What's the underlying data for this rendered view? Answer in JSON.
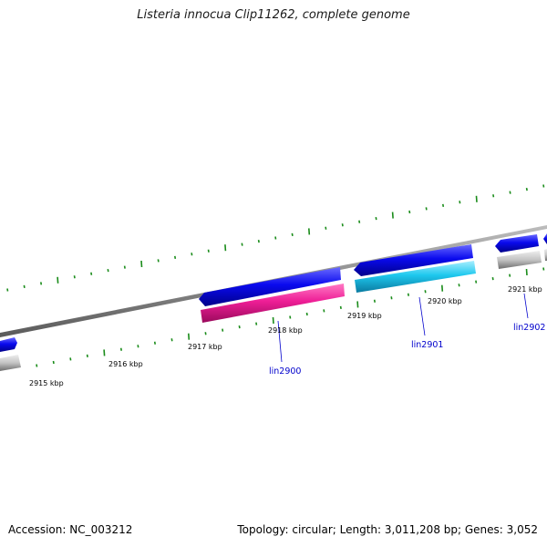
{
  "title": "Listeria innocua Clip11262, complete genome",
  "footer": {
    "accession": "Accession: NC_003212",
    "summary": "Topology: circular; Length: 3,011,208 bp; Genes: 3,052"
  },
  "scale_labels": [
    "2915 kbp",
    "2916 kbp",
    "2917 kbp",
    "2918 kbp",
    "2919 kbp",
    "2920 kbp",
    "2921 kbp"
  ],
  "gene_labels": [
    "lin2900",
    "lin2901",
    "lin2902"
  ],
  "colors": {
    "backbone": "#8a8a8a",
    "cds_blue": "#0a0aee",
    "cds_magenta": "#ee1e96",
    "cds_cyan": "#1ec8ee",
    "cds_gray": "#c4c4c4",
    "tick_green": "#1a8c1a",
    "label_blue": "#0000cc"
  }
}
